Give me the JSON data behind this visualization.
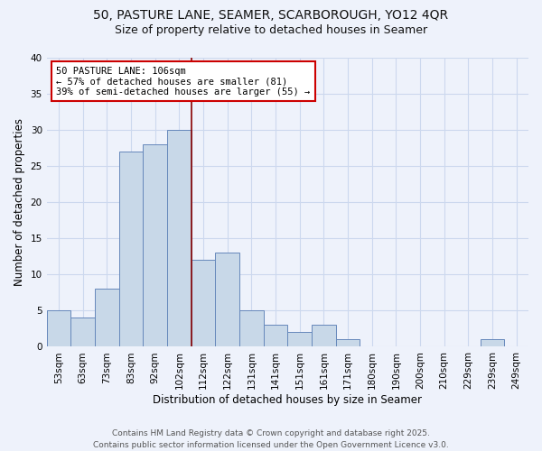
{
  "title1": "50, PASTURE LANE, SEAMER, SCARBOROUGH, YO12 4QR",
  "title2": "Size of property relative to detached houses in Seamer",
  "xlabel": "Distribution of detached houses by size in Seamer",
  "ylabel": "Number of detached properties",
  "categories": [
    "53sqm",
    "63sqm",
    "73sqm",
    "83sqm",
    "92sqm",
    "102sqm",
    "112sqm",
    "122sqm",
    "131sqm",
    "141sqm",
    "151sqm",
    "161sqm",
    "171sqm",
    "180sqm",
    "190sqm",
    "200sqm",
    "210sqm",
    "229sqm",
    "239sqm",
    "249sqm"
  ],
  "values": [
    5,
    4,
    8,
    27,
    28,
    30,
    12,
    13,
    5,
    3,
    2,
    3,
    1,
    0,
    0,
    0,
    0,
    0,
    1,
    0
  ],
  "bar_color": "#c8d8e8",
  "bar_edge_color": "#6688bb",
  "ref_line_x": 5.5,
  "annotation_text_line1": "50 PASTURE LANE: 106sqm",
  "annotation_text_line2": "← 57% of detached houses are smaller (81)",
  "annotation_text_line3": "39% of semi-detached houses are larger (55) →",
  "annotation_box_color": "#ffffff",
  "annotation_box_edge_color": "#cc0000",
  "ref_line_color": "#880000",
  "grid_color": "#ccd8ee",
  "background_color": "#eef2fb",
  "footer_text": "Contains HM Land Registry data © Crown copyright and database right 2025.\nContains public sector information licensed under the Open Government Licence v3.0.",
  "ylim": [
    0,
    40
  ],
  "yticks": [
    0,
    5,
    10,
    15,
    20,
    25,
    30,
    35,
    40
  ],
  "title_fontsize": 10,
  "subtitle_fontsize": 9,
  "axis_label_fontsize": 8.5,
  "tick_fontsize": 7.5,
  "annotation_fontsize": 7.5,
  "footer_fontsize": 6.5
}
